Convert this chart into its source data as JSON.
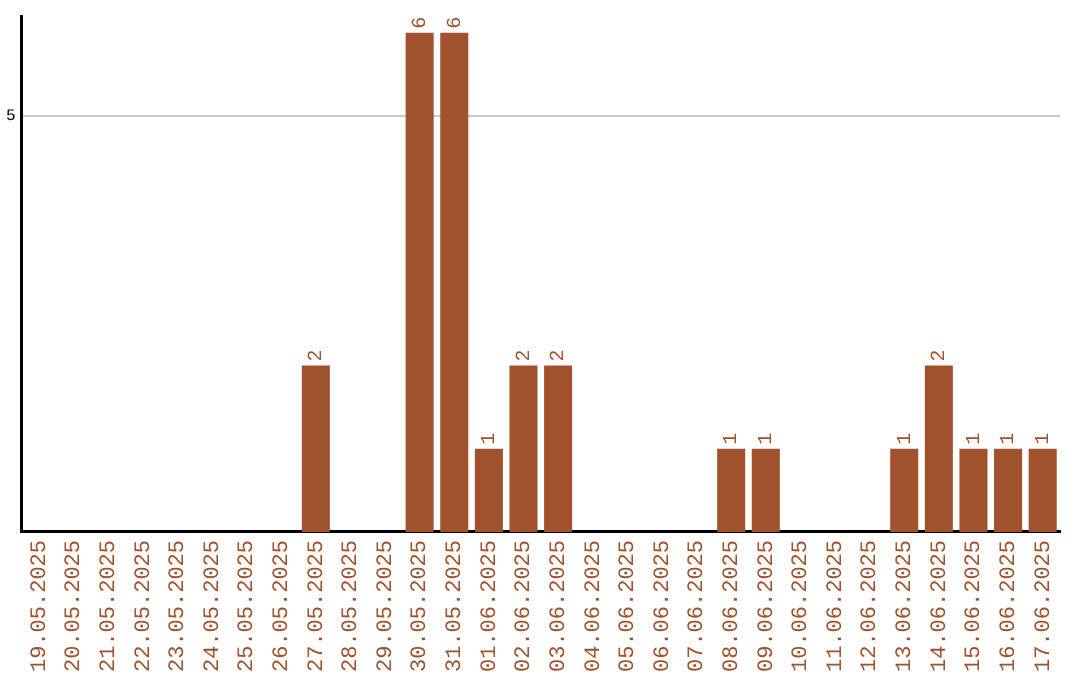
{
  "chart_data": {
    "type": "bar",
    "categories": [
      "19.05.2025",
      "20.05.2025",
      "21.05.2025",
      "22.05.2025",
      "23.05.2025",
      "24.05.2025",
      "25.05.2025",
      "26.05.2025",
      "27.05.2025",
      "28.05.2025",
      "29.05.2025",
      "30.05.2025",
      "31.05.2025",
      "01.06.2025",
      "02.06.2025",
      "03.06.2025",
      "04.06.2025",
      "05.06.2025",
      "06.06.2025",
      "07.06.2025",
      "08.06.2025",
      "09.06.2025",
      "10.06.2025",
      "11.06.2025",
      "12.06.2025",
      "13.06.2025",
      "14.06.2025",
      "15.06.2025",
      "16.06.2025",
      "17.06.2025"
    ],
    "values": [
      0,
      0,
      0,
      0,
      0,
      0,
      0,
      0,
      2,
      0,
      0,
      6,
      6,
      1,
      2,
      2,
      0,
      0,
      0,
      0,
      1,
      1,
      0,
      0,
      0,
      1,
      2,
      1,
      1,
      1
    ],
    "value_labels": [
      null,
      null,
      null,
      null,
      null,
      null,
      null,
      null,
      "2",
      null,
      null,
      "6",
      "6",
      "1",
      "2",
      "2",
      null,
      null,
      null,
      null,
      "1",
      "1",
      null,
      null,
      null,
      "1",
      "2",
      "1",
      "1",
      "1"
    ],
    "color": "#a0522d",
    "ylim": [
      0,
      6.2
    ],
    "yticks": [
      5
    ],
    "grid": "y"
  }
}
